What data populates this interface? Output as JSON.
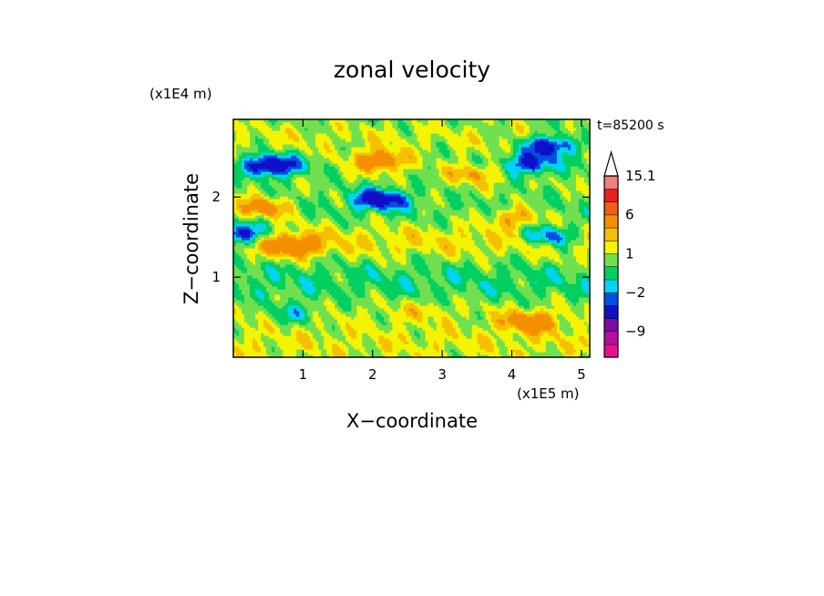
{
  "chart_data": {
    "type": "heatmap",
    "title": "zonal velocity",
    "xlabel": "X−coordinate",
    "ylabel": "Z−coordinate",
    "x_scale_label": "(x1E5 m)",
    "y_scale_label": "(x1E4 m)",
    "time_label": "t=85200 s",
    "xlim": [
      0,
      5.12
    ],
    "ylim": [
      0,
      2.97
    ],
    "x_ticks": [
      "1",
      "2",
      "3",
      "4",
      "5"
    ],
    "x_tick_values": [
      1,
      2,
      3,
      4,
      5
    ],
    "y_ticks": [
      "1",
      "2"
    ],
    "y_tick_values": [
      1,
      2
    ],
    "colorbar": {
      "levels": [
        -15,
        -12,
        -9,
        -6,
        -3,
        -2,
        -1,
        0,
        1,
        2,
        3,
        6,
        9,
        12,
        15.1
      ],
      "colors": [
        "#e8108c",
        "#b410a0",
        "#7a0ca8",
        "#1010c8",
        "#0050e0",
        "#00d4f4",
        "#00d060",
        "#70e050",
        "#f4f400",
        "#f4c000",
        "#f49000",
        "#f06010",
        "#e82020",
        "#f08080",
        "#f8c8c8"
      ],
      "labels": [
        "15.1",
        "6",
        "1",
        "−2",
        "−9"
      ],
      "label_values": [
        15.1,
        6,
        1,
        -2,
        -9
      ],
      "extend_max": true
    },
    "blobs": [
      {
        "x": 2.1,
        "z": 2.46,
        "v": 4.5
      },
      {
        "x": 2.1,
        "z": 1.98,
        "v": -5
      },
      {
        "x": 0.55,
        "z": 2.4,
        "v": -6
      },
      {
        "x": 0.4,
        "z": 1.87,
        "v": 4
      },
      {
        "x": 0.85,
        "z": 1.4,
        "v": 4
      },
      {
        "x": 3.45,
        "z": 2.3,
        "v": 2.5
      },
      {
        "x": 4.25,
        "z": 2.42,
        "v": -4
      },
      {
        "x": 4.55,
        "z": 2.65,
        "v": -5
      },
      {
        "x": 4.05,
        "z": 1.75,
        "v": 2.5
      },
      {
        "x": 4.55,
        "z": 1.52,
        "v": -4
      },
      {
        "x": 0.1,
        "z": 1.55,
        "v": -5
      },
      {
        "x": 2.7,
        "z": 0.6,
        "v": 1
      },
      {
        "x": 4.25,
        "z": 0.45,
        "v": 4
      },
      {
        "x": 0.85,
        "z": 0.55,
        "v": -2
      }
    ],
    "bands": [
      {
        "z": 2.75,
        "v": 1.2
      },
      {
        "z": 2.2,
        "v": 0.6
      },
      {
        "z": 1.45,
        "v": 1.8
      },
      {
        "z": 0.95,
        "v": -0.5
      },
      {
        "z": 0.55,
        "v": 0.9
      },
      {
        "z": 0.15,
        "v": 1.4
      }
    ]
  }
}
